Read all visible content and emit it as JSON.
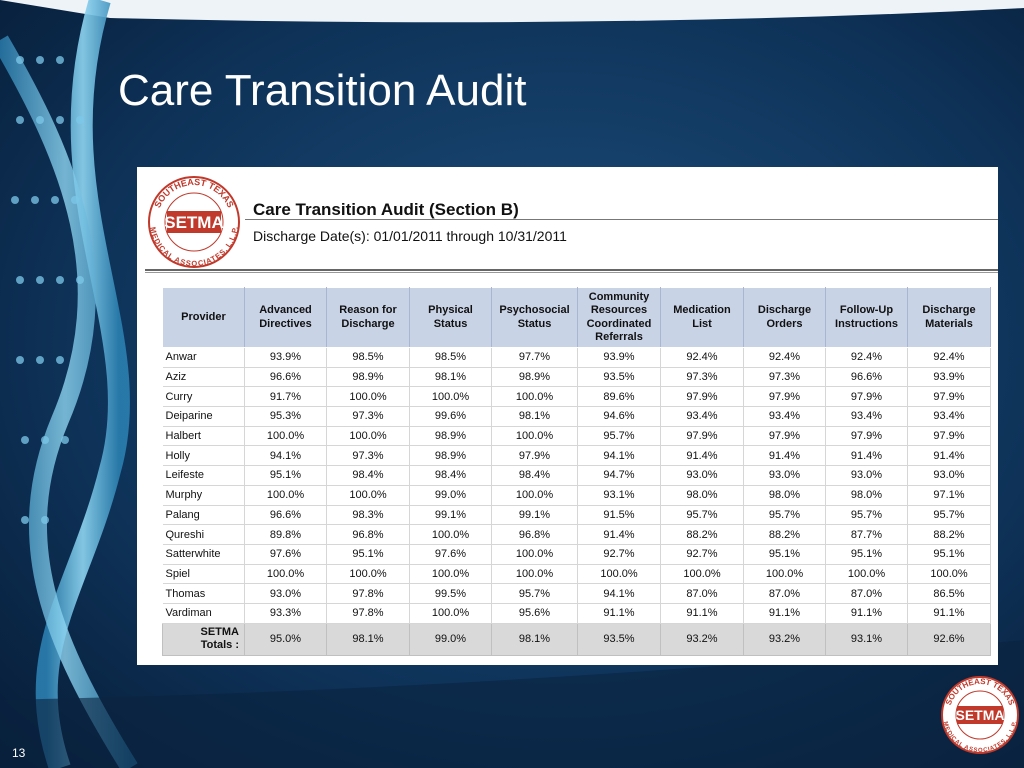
{
  "slide_title": "Care Transition Audit",
  "slide_number": "13",
  "logo": {
    "ring_top": "SOUTHEAST TEXAS",
    "center": "SETMA",
    "ring_bottom": "MEDICAL ASSOCIATES, L.L.P."
  },
  "report": {
    "title": "Care Transition Audit (Section B)",
    "subtitle": "Discharge Date(s):  01/01/2011 through 10/31/2011"
  },
  "table": {
    "columns": [
      "Provider",
      "Advanced Directives",
      "Reason for Discharge",
      "Physical Status",
      "Psychosocial Status",
      "Community Resources Coordinated Referrals",
      "Medication List",
      "Discharge Orders",
      "Follow-Up Instructions",
      "Discharge Materials"
    ],
    "rows": [
      [
        "Anwar",
        "93.9%",
        "98.5%",
        "98.5%",
        "97.7%",
        "93.9%",
        "92.4%",
        "92.4%",
        "92.4%",
        "92.4%"
      ],
      [
        "Aziz",
        "96.6%",
        "98.9%",
        "98.1%",
        "98.9%",
        "93.5%",
        "97.3%",
        "97.3%",
        "96.6%",
        "93.9%"
      ],
      [
        "Curry",
        "91.7%",
        "100.0%",
        "100.0%",
        "100.0%",
        "89.6%",
        "97.9%",
        "97.9%",
        "97.9%",
        "97.9%"
      ],
      [
        "Deiparine",
        "95.3%",
        "97.3%",
        "99.6%",
        "98.1%",
        "94.6%",
        "93.4%",
        "93.4%",
        "93.4%",
        "93.4%"
      ],
      [
        "Halbert",
        "100.0%",
        "100.0%",
        "98.9%",
        "100.0%",
        "95.7%",
        "97.9%",
        "97.9%",
        "97.9%",
        "97.9%"
      ],
      [
        "Holly",
        "94.1%",
        "97.3%",
        "98.9%",
        "97.9%",
        "94.1%",
        "91.4%",
        "91.4%",
        "91.4%",
        "91.4%"
      ],
      [
        "Leifeste",
        "95.1%",
        "98.4%",
        "98.4%",
        "98.4%",
        "94.7%",
        "93.0%",
        "93.0%",
        "93.0%",
        "93.0%"
      ],
      [
        "Murphy",
        "100.0%",
        "100.0%",
        "99.0%",
        "100.0%",
        "93.1%",
        "98.0%",
        "98.0%",
        "98.0%",
        "97.1%"
      ],
      [
        "Palang",
        "96.6%",
        "98.3%",
        "99.1%",
        "99.1%",
        "91.5%",
        "95.7%",
        "95.7%",
        "95.7%",
        "95.7%"
      ],
      [
        "Qureshi",
        "89.8%",
        "96.8%",
        "100.0%",
        "96.8%",
        "91.4%",
        "88.2%",
        "88.2%",
        "87.7%",
        "88.2%"
      ],
      [
        "Satterwhite",
        "97.6%",
        "95.1%",
        "97.6%",
        "100.0%",
        "92.7%",
        "92.7%",
        "95.1%",
        "95.1%",
        "95.1%"
      ],
      [
        "Spiel",
        "100.0%",
        "100.0%",
        "100.0%",
        "100.0%",
        "100.0%",
        "100.0%",
        "100.0%",
        "100.0%",
        "100.0%"
      ],
      [
        "Thomas",
        "93.0%",
        "97.8%",
        "99.5%",
        "95.7%",
        "94.1%",
        "87.0%",
        "87.0%",
        "87.0%",
        "86.5%"
      ],
      [
        "Vardiman",
        "93.3%",
        "97.8%",
        "100.0%",
        "95.6%",
        "91.1%",
        "91.1%",
        "91.1%",
        "91.1%",
        "91.1%"
      ]
    ],
    "totals": {
      "label": [
        "SETMA",
        "Totals :"
      ],
      "values": [
        "95.0%",
        "98.1%",
        "99.0%",
        "98.1%",
        "93.5%",
        "93.2%",
        "93.2%",
        "93.1%",
        "92.6%"
      ]
    }
  }
}
